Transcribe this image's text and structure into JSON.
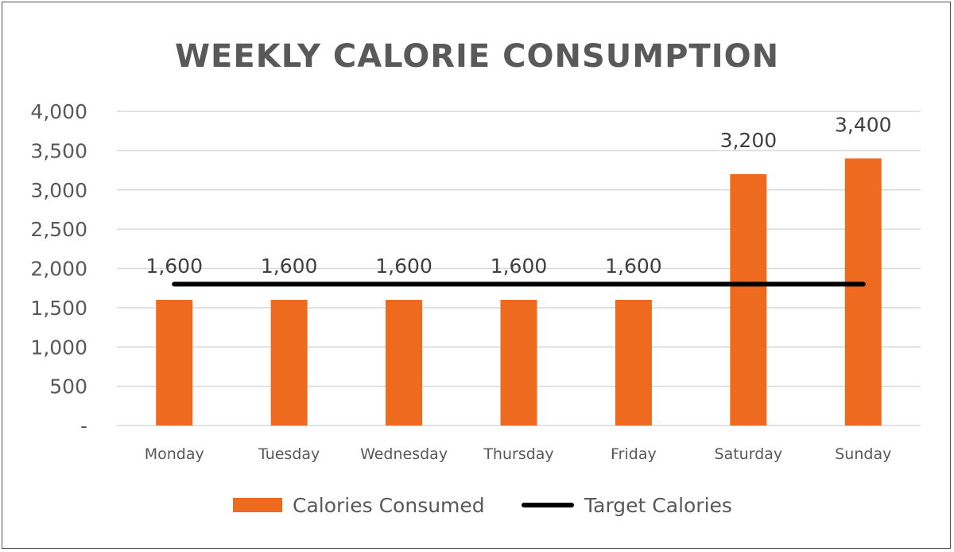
{
  "chart_data": {
    "type": "bar",
    "title": "WEEKLY CALORIE CONSUMPTION",
    "categories": [
      "Monday",
      "Tuesday",
      "Wednesday",
      "Thursday",
      "Friday",
      "Saturday",
      "Sunday"
    ],
    "series": [
      {
        "name": "Calories Consumed",
        "type": "bar",
        "values": [
          1600,
          1600,
          1600,
          1600,
          1600,
          3200,
          3400
        ],
        "data_labels": [
          "1,600",
          "1,600",
          "1,600",
          "1,600",
          "1,600",
          "3,200",
          "3,400"
        ],
        "color": "#ED6A1F"
      },
      {
        "name": "Target Calories",
        "type": "line",
        "values": [
          1800,
          1800,
          1800,
          1800,
          1800,
          1800,
          1800
        ],
        "color": "#000000"
      }
    ],
    "y_ticks": [
      {
        "value": 0,
        "label": "-"
      },
      {
        "value": 500,
        "label": "500"
      },
      {
        "value": 1000,
        "label": "1,000"
      },
      {
        "value": 1500,
        "label": "1,500"
      },
      {
        "value": 2000,
        "label": "2,000"
      },
      {
        "value": 2500,
        "label": "2,500"
      },
      {
        "value": 3000,
        "label": "3,000"
      },
      {
        "value": 3500,
        "label": "3,500"
      },
      {
        "value": 4000,
        "label": "4,000"
      }
    ],
    "ylim": [
      0,
      4000
    ],
    "xlabel": "",
    "ylabel": "",
    "grid": true,
    "legend": "bottom",
    "colors": {
      "title": "#595959",
      "tick": "#595959",
      "grid": "#D9D9D9",
      "label": "#404040"
    }
  }
}
